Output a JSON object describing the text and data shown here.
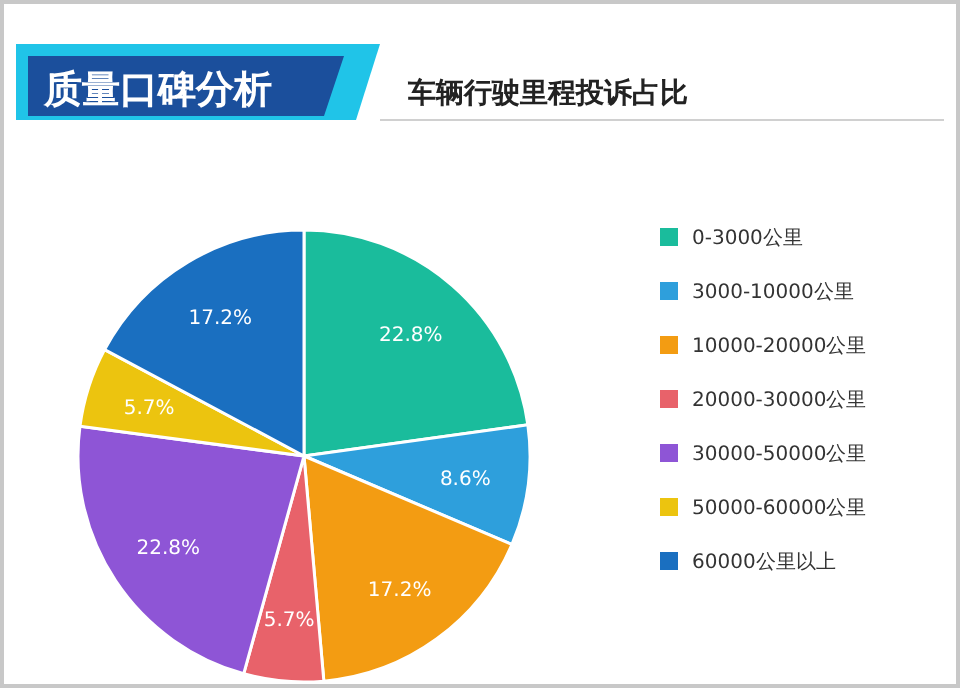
{
  "chart_data": {
    "type": "pie",
    "title": "质量口碑分析",
    "subtitle": "车辆行驶里程投诉占比",
    "categories": [
      "0-3000公里",
      "3000-10000公里",
      "10000-20000公里",
      "20000-30000公里",
      "30000-50000公里",
      "50000-60000公里",
      "60000公里以上"
    ],
    "values": [
      22.8,
      8.6,
      17.2,
      5.7,
      22.8,
      5.7,
      17.2
    ],
    "colors": [
      "#1abc9c",
      "#2e9fdc",
      "#f39c12",
      "#e8626a",
      "#8e55d6",
      "#ecc40f",
      "#1a6fc0"
    ],
    "value_labels": [
      "22.8%",
      "8.6%",
      "17.2%",
      "5.7%",
      "22.8%",
      "5.7%",
      "17.2%"
    ],
    "legend": "right"
  }
}
